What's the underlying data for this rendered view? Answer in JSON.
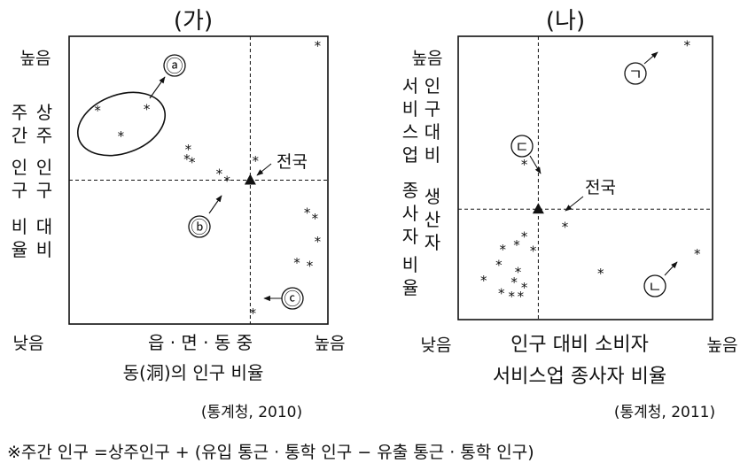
{
  "chart_data": [
    {
      "type": "scatter",
      "panel_title": "(가)",
      "y_axis": {
        "high_label": "높음",
        "low_label": "낮음",
        "label_lines": [
          "주간 인구",
          "상주 인구",
          "비율"
        ]
      },
      "x_axis": {
        "low_label": "낮음",
        "high_label": "높음",
        "label_lines": [
          "읍 · 면 · 동 중",
          "동(洞)의 인구 비율"
        ]
      },
      "source": "(통계청, 2010)",
      "xlim": [
        0,
        10
      ],
      "ylim": [
        0,
        10
      ],
      "reference": {
        "label": "전국",
        "x": 7.0,
        "y": 5.0
      },
      "points": [
        {
          "x": 1.1,
          "y": 7.45
        },
        {
          "x": 2.0,
          "y": 6.55
        },
        {
          "x": 3.0,
          "y": 7.5
        },
        {
          "x": 9.6,
          "y": 9.7
        },
        {
          "x": 4.6,
          "y": 6.1
        },
        {
          "x": 4.55,
          "y": 5.75
        },
        {
          "x": 4.75,
          "y": 5.65
        },
        {
          "x": 5.8,
          "y": 5.25
        },
        {
          "x": 6.1,
          "y": 5.0
        },
        {
          "x": 7.2,
          "y": 5.7
        },
        {
          "x": 9.2,
          "y": 3.9
        },
        {
          "x": 9.5,
          "y": 3.7
        },
        {
          "x": 9.6,
          "y": 2.9
        },
        {
          "x": 8.8,
          "y": 2.15
        },
        {
          "x": 9.3,
          "y": 2.05
        },
        {
          "x": 7.1,
          "y": 0.4
        }
      ],
      "annotations": [
        {
          "label": "ⓐ",
          "target": "oval group"
        },
        {
          "label": "ⓑ",
          "target": [
            5.8,
            5.25
          ]
        },
        {
          "label": "ⓒ",
          "target": [
            7.1,
            0.4
          ]
        }
      ]
    },
    {
      "type": "scatter",
      "panel_title": "(나)",
      "y_axis": {
        "high_label": "높음",
        "low_label": "낮음",
        "label_lines": [
          "인구 대비",
          "서비스업 생산자",
          "종사자 비율"
        ]
      },
      "x_axis": {
        "low_label": "낮음",
        "high_label": "높음",
        "label_lines": [
          "인구 대비 소비자",
          "서비스업 종사자 비율"
        ]
      },
      "source": "(통계청, 2011)",
      "xlim": [
        0,
        10
      ],
      "ylim": [
        0,
        10
      ],
      "reference": {
        "label": "전국",
        "x": 3.15,
        "y": 3.9
      },
      "points": [
        {
          "x": 9.0,
          "y": 9.7
        },
        {
          "x": 2.6,
          "y": 5.5
        },
        {
          "x": 4.2,
          "y": 3.3
        },
        {
          "x": 1.75,
          "y": 2.5
        },
        {
          "x": 2.3,
          "y": 2.65
        },
        {
          "x": 2.6,
          "y": 2.95
        },
        {
          "x": 2.95,
          "y": 2.45
        },
        {
          "x": 1.6,
          "y": 1.95
        },
        {
          "x": 2.35,
          "y": 1.7
        },
        {
          "x": 1.0,
          "y": 1.4
        },
        {
          "x": 2.2,
          "y": 1.35
        },
        {
          "x": 2.6,
          "y": 1.15
        },
        {
          "x": 1.7,
          "y": 0.95
        },
        {
          "x": 2.1,
          "y": 0.85
        },
        {
          "x": 2.45,
          "y": 0.85
        },
        {
          "x": 5.6,
          "y": 1.65
        },
        {
          "x": 9.4,
          "y": 2.35
        }
      ],
      "annotations": [
        {
          "label": "ㄱ",
          "target": [
            9.0,
            9.7
          ]
        },
        {
          "label": "ㄴ",
          "target": [
            9.4,
            2.35
          ]
        },
        {
          "label": "ㄷ",
          "target": [
            2.6,
            5.5
          ]
        }
      ]
    }
  ],
  "footnote": "※주간 인구 =상주인구 + (유입 통근 · 통학 인구 − 유출 통근 · 통학 인구)"
}
